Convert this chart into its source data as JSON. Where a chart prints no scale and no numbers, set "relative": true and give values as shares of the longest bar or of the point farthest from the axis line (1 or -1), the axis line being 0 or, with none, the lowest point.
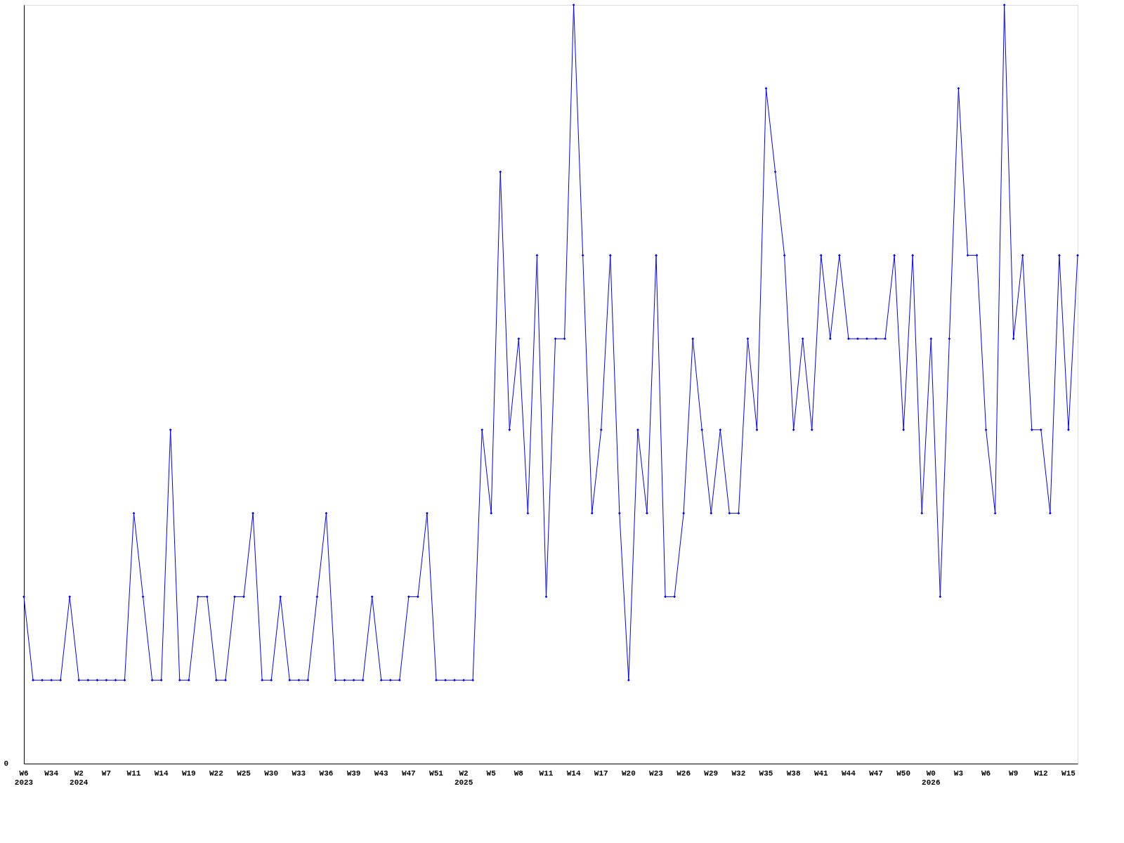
{
  "chart_data": {
    "type": "line",
    "relative": true,
    "marker": "diamond",
    "line_style": "solid",
    "grid": false,
    "categories": [
      "W6\n2023",
      null,
      null,
      "W34",
      null,
      null,
      "W2\n2024",
      null,
      null,
      "W7",
      null,
      null,
      "W11",
      null,
      null,
      "W14",
      null,
      null,
      "W19",
      null,
      null,
      "W22",
      null,
      null,
      "W25",
      null,
      null,
      "W30",
      null,
      null,
      "W33",
      null,
      null,
      "W36",
      null,
      null,
      "W39",
      null,
      null,
      "W43",
      null,
      null,
      "W47",
      null,
      null,
      "W51",
      null,
      null,
      "W2\n2025",
      null,
      null,
      "W5",
      null,
      null,
      "W8",
      null,
      null,
      "W11",
      null,
      null,
      "W14",
      null,
      null,
      "W17",
      null,
      null,
      "W20",
      null,
      null,
      "W23",
      null,
      null,
      "W26",
      null,
      null,
      "W29",
      null,
      null,
      "W32",
      null,
      null,
      "W35",
      null,
      null,
      "W38",
      null,
      null,
      "W41",
      null,
      null,
      "W44",
      null,
      null,
      "W47",
      null,
      null,
      "W50",
      null,
      null,
      "W0\n2026",
      null,
      null,
      "W3",
      null,
      null,
      "W6",
      null,
      null,
      "W9",
      null,
      null,
      "W12",
      null,
      null,
      "W15",
      null
    ],
    "series": [
      {
        "color": "#0000ff",
        "values": [
          0.22,
          0.11,
          0.11,
          0.11,
          0.11,
          0.22,
          0.11,
          0.11,
          0.11,
          0.11,
          0.11,
          0.11,
          0.33,
          0.22,
          0.11,
          0.11,
          0.44,
          0.11,
          0.11,
          0.22,
          0.22,
          0.11,
          0.11,
          0.22,
          0.22,
          0.33,
          0.11,
          0.11,
          0.22,
          0.11,
          0.11,
          0.11,
          0.22,
          0.33,
          0.11,
          0.11,
          0.11,
          0.11,
          0.22,
          0.11,
          0.11,
          0.11,
          0.22,
          0.22,
          0.33,
          0.11,
          0.11,
          0.11,
          0.11,
          0.11,
          0.44,
          0.33,
          0.78,
          0.44,
          0.56,
          0.33,
          0.67,
          0.22,
          0.56,
          0.56,
          1,
          0.67,
          0.33,
          0.44,
          0.67,
          0.33,
          0.11,
          0.44,
          0.33,
          0.67,
          0.22,
          0.22,
          0.33,
          0.56,
          0.44,
          0.33,
          0.44,
          0.33,
          0.33,
          0.56,
          0.44,
          0.89,
          0.78,
          0.67,
          0.44,
          0.56,
          0.44,
          0.67,
          0.56,
          0.67,
          0.56,
          0.56,
          0.56,
          0.56,
          0.56,
          0.67,
          0.44,
          0.67,
          0.33,
          0.56,
          0.22,
          0.56,
          0.89,
          0.67,
          0.67,
          0.44,
          0.33,
          1,
          0.56,
          0.67,
          0.44,
          0.44,
          0.33,
          0.67,
          0.44,
          0.67
        ]
      }
    ],
    "annotations": [
      "0"
    ]
  }
}
